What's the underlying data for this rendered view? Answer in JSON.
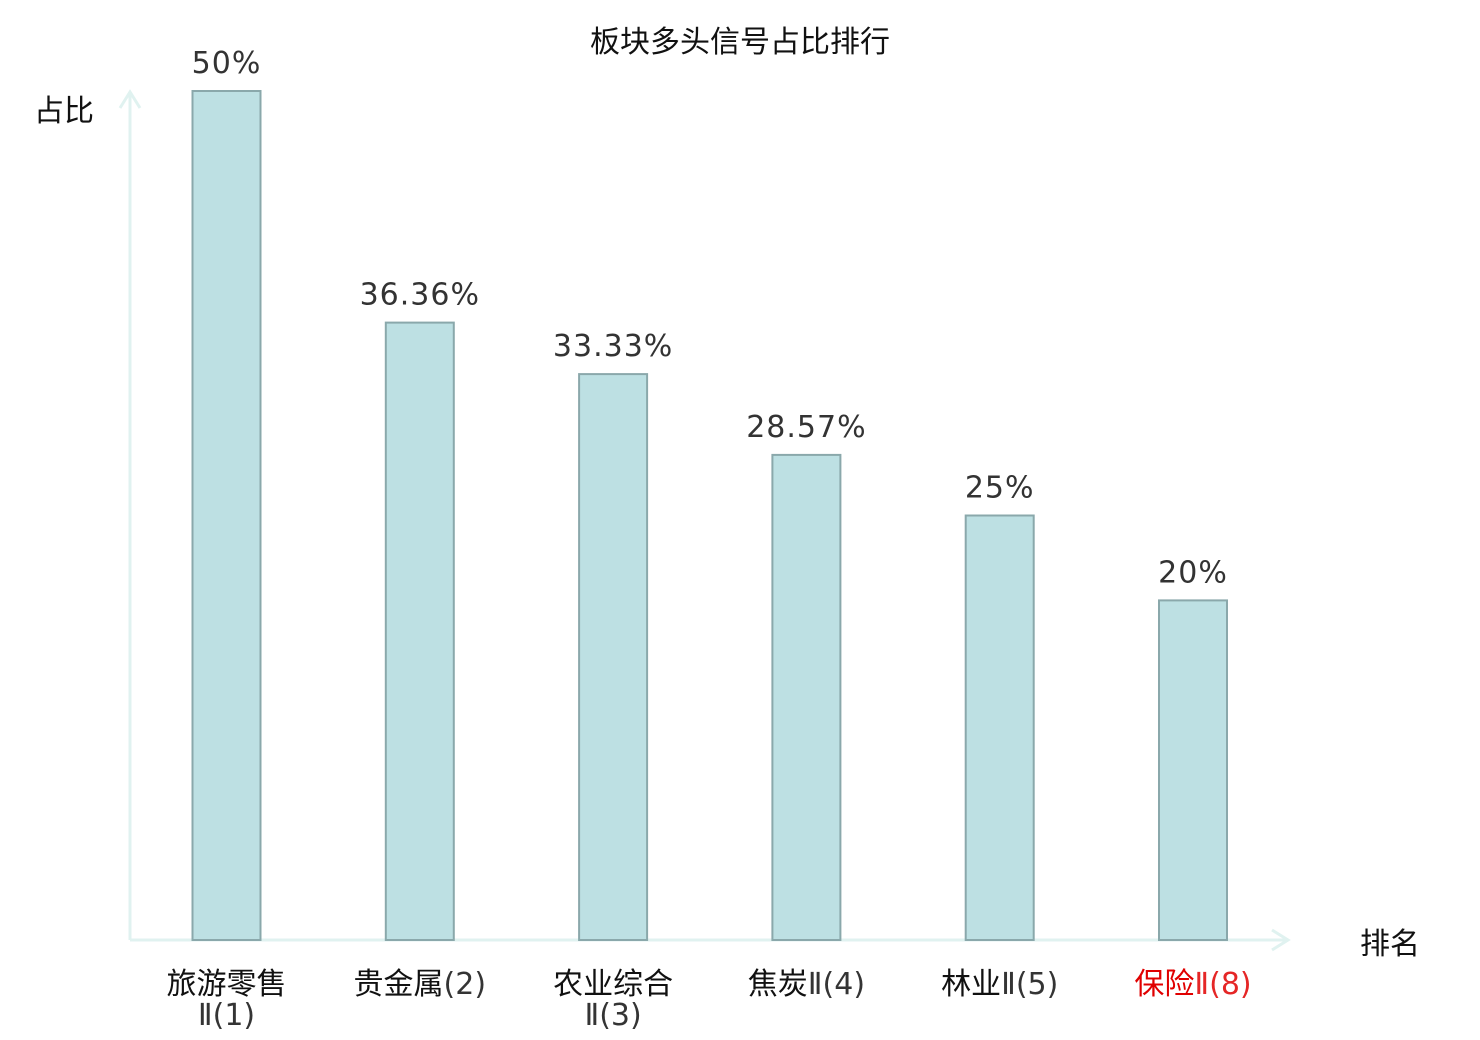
{
  "chart_data": {
    "type": "bar",
    "title": "板块多头信号占比排行",
    "xlabel": "排名",
    "ylabel": "占比",
    "ylim": [
      0,
      50
    ],
    "grid": false,
    "categories": [
      {
        "name": "旅游零售",
        "suffix": "Ⅱ(1)",
        "wrap": true,
        "highlight": false
      },
      {
        "name": "贵金属",
        "suffix": "(2)",
        "wrap": false,
        "highlight": false
      },
      {
        "name": "农业综合",
        "suffix": "Ⅱ(3)",
        "wrap": true,
        "highlight": false
      },
      {
        "name": "焦炭",
        "suffix": "Ⅱ(4)",
        "wrap": false,
        "highlight": false
      },
      {
        "name": "林业",
        "suffix": "Ⅱ(5)",
        "wrap": false,
        "highlight": false
      },
      {
        "name": "保险",
        "suffix": "Ⅱ(8)",
        "wrap": false,
        "highlight": true
      }
    ],
    "values": [
      50,
      36.36,
      33.33,
      28.57,
      25,
      20
    ],
    "value_labels": [
      "50%",
      "36.36%",
      "33.33%",
      "28.57%",
      "25%",
      "20%"
    ],
    "colors": {
      "bar_fill": "#bde0e3",
      "bar_stroke": "#8aa8ab",
      "axis": "#e0f2f0",
      "text": "#111111",
      "highlight": "#e00000"
    }
  }
}
